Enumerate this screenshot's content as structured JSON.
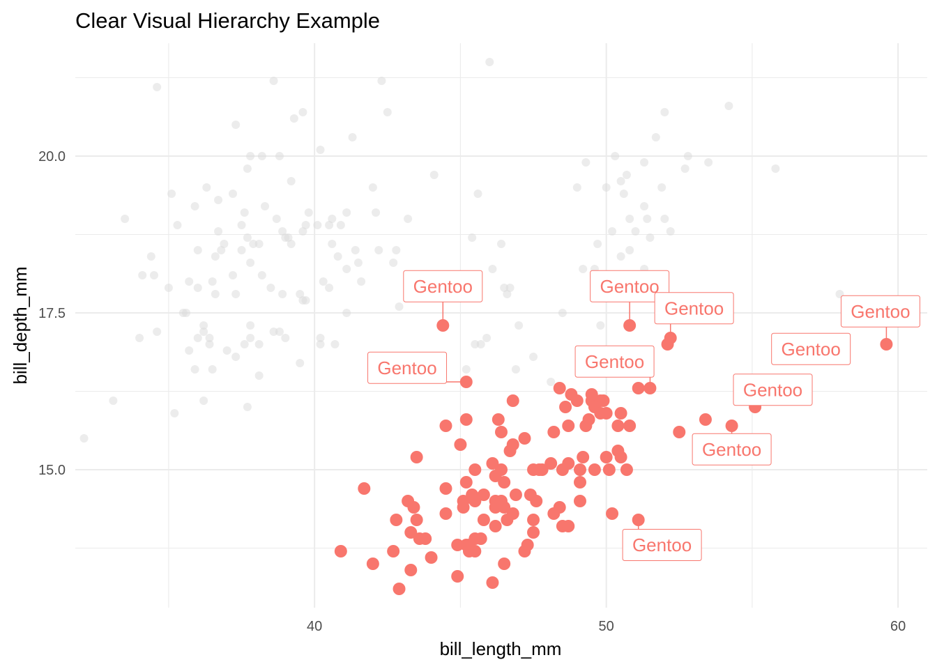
{
  "chart_data": {
    "type": "scatter",
    "title": "Clear Visual Hierarchy Example",
    "xlabel": "bill_length_mm",
    "ylabel": "bill_depth_mm",
    "xlim": [
      31.8,
      61.0
    ],
    "ylim": [
      12.8,
      21.8
    ],
    "x_ticks": [
      40,
      50,
      60
    ],
    "x_tick_labels": [
      "40",
      "50",
      "60"
    ],
    "x_minor_ticks": [
      35,
      45,
      55
    ],
    "y_ticks": [
      15.0,
      17.5,
      20.0
    ],
    "y_tick_labels": [
      "15.0",
      "17.5",
      "20.0"
    ],
    "y_minor_ticks": [
      13.75,
      16.25,
      18.75,
      21.25
    ],
    "grid": true,
    "legend": "none",
    "colors": {
      "highlight": "#F8766D",
      "muted": "#d9d9d9",
      "grid": "#ebebeb",
      "label_fill": "#ffffff"
    },
    "series": [
      {
        "role": "muted",
        "points": [
          [
            32.1,
            15.5
          ],
          [
            33.1,
            16.1
          ],
          [
            33.5,
            19.0
          ],
          [
            34.0,
            17.1
          ],
          [
            34.1,
            18.1
          ],
          [
            34.4,
            18.4
          ],
          [
            34.5,
            18.1
          ],
          [
            34.6,
            21.1
          ],
          [
            34.6,
            17.2
          ],
          [
            35.0,
            17.9
          ],
          [
            35.1,
            19.4
          ],
          [
            35.2,
            15.9
          ],
          [
            35.3,
            18.9
          ],
          [
            35.5,
            17.5
          ],
          [
            35.6,
            17.5
          ],
          [
            35.7,
            16.9
          ],
          [
            35.7,
            18.0
          ],
          [
            35.9,
            16.6
          ],
          [
            35.9,
            19.2
          ],
          [
            36.0,
            17.1
          ],
          [
            36.0,
            17.9
          ],
          [
            36.0,
            18.5
          ],
          [
            36.2,
            17.3
          ],
          [
            36.2,
            16.1
          ],
          [
            36.2,
            17.2
          ],
          [
            36.3,
            19.5
          ],
          [
            36.4,
            17.0
          ],
          [
            36.4,
            17.1
          ],
          [
            36.5,
            18.0
          ],
          [
            36.5,
            16.6
          ],
          [
            36.6,
            18.4
          ],
          [
            36.6,
            17.8
          ],
          [
            36.7,
            18.8
          ],
          [
            36.7,
            19.3
          ],
          [
            36.8,
            18.5
          ],
          [
            36.9,
            18.6
          ],
          [
            37.0,
            16.9
          ],
          [
            37.2,
            18.1
          ],
          [
            37.2,
            19.4
          ],
          [
            37.3,
            16.8
          ],
          [
            37.3,
            17.8
          ],
          [
            37.3,
            20.5
          ],
          [
            37.5,
            18.9
          ],
          [
            37.5,
            18.5
          ],
          [
            37.6,
            19.1
          ],
          [
            37.6,
            17.0
          ],
          [
            37.7,
            18.7
          ],
          [
            37.7,
            16.0
          ],
          [
            37.7,
            19.8
          ],
          [
            37.8,
            17.1
          ],
          [
            37.8,
            17.3
          ],
          [
            37.8,
            18.3
          ],
          [
            37.8,
            20.0
          ],
          [
            37.9,
            18.6
          ],
          [
            38.1,
            18.6
          ],
          [
            38.1,
            17.0
          ],
          [
            38.1,
            16.5
          ],
          [
            38.2,
            18.1
          ],
          [
            38.2,
            20.0
          ],
          [
            38.3,
            19.2
          ],
          [
            38.5,
            17.9
          ],
          [
            38.6,
            21.2
          ],
          [
            38.6,
            17.2
          ],
          [
            38.7,
            19.0
          ],
          [
            38.8,
            17.2
          ],
          [
            38.8,
            20.0
          ],
          [
            38.9,
            17.8
          ],
          [
            38.9,
            18.8
          ],
          [
            39.0,
            17.1
          ],
          [
            39.0,
            18.7
          ],
          [
            39.1,
            18.7
          ],
          [
            39.2,
            19.6
          ],
          [
            39.2,
            18.6
          ],
          [
            39.3,
            20.6
          ],
          [
            39.5,
            16.7
          ],
          [
            39.5,
            17.8
          ],
          [
            39.6,
            17.7
          ],
          [
            39.6,
            18.8
          ],
          [
            39.6,
            20.7
          ],
          [
            39.7,
            17.7
          ],
          [
            39.7,
            18.9
          ],
          [
            39.8,
            19.1
          ],
          [
            40.1,
            18.9
          ],
          [
            40.2,
            17.0
          ],
          [
            40.2,
            17.1
          ],
          [
            40.2,
            20.1
          ],
          [
            40.3,
            18.0
          ],
          [
            40.5,
            17.9
          ],
          [
            40.5,
            18.9
          ],
          [
            40.6,
            18.6
          ],
          [
            40.6,
            19.0
          ],
          [
            40.7,
            17.0
          ],
          [
            40.8,
            18.4
          ],
          [
            40.9,
            18.9
          ],
          [
            41.1,
            17.5
          ],
          [
            41.1,
            18.2
          ],
          [
            41.1,
            19.1
          ],
          [
            41.3,
            20.3
          ],
          [
            41.4,
            18.5
          ],
          [
            41.5,
            18.3
          ],
          [
            41.6,
            18.0
          ],
          [
            42.0,
            19.5
          ],
          [
            42.1,
            19.1
          ],
          [
            42.2,
            18.5
          ],
          [
            42.3,
            21.2
          ],
          [
            42.5,
            20.7
          ],
          [
            42.7,
            18.3
          ],
          [
            42.8,
            18.5
          ],
          [
            42.9,
            17.6
          ],
          [
            43.2,
            19.0
          ],
          [
            44.1,
            19.7
          ],
          [
            45.2,
            16.6
          ],
          [
            45.4,
            18.7
          ],
          [
            45.5,
            17.0
          ],
          [
            45.6,
            19.4
          ],
          [
            45.7,
            17.0
          ],
          [
            45.9,
            17.1
          ],
          [
            46.0,
            21.5
          ],
          [
            46.1,
            18.2
          ],
          [
            46.4,
            18.6
          ],
          [
            46.5,
            17.9
          ],
          [
            46.6,
            17.8
          ],
          [
            46.7,
            17.9
          ],
          [
            46.9,
            16.6
          ],
          [
            47.0,
            17.3
          ],
          [
            47.5,
            16.8
          ],
          [
            48.1,
            16.4
          ],
          [
            48.5,
            17.5
          ],
          [
            49.0,
            19.5
          ],
          [
            49.2,
            18.2
          ],
          [
            49.3,
            19.9
          ],
          [
            49.6,
            18.2
          ],
          [
            49.7,
            18.6
          ],
          [
            49.8,
            17.3
          ],
          [
            50.0,
            19.5
          ],
          [
            50.1,
            17.9
          ],
          [
            50.2,
            18.8
          ],
          [
            50.3,
            20.0
          ],
          [
            50.5,
            18.4
          ],
          [
            50.5,
            19.6
          ],
          [
            50.6,
            19.4
          ],
          [
            50.7,
            19.7
          ],
          [
            50.8,
            18.5
          ],
          [
            50.8,
            19.0
          ],
          [
            50.9,
            17.9
          ],
          [
            51.0,
            18.8
          ],
          [
            51.3,
            19.9
          ],
          [
            51.3,
            18.2
          ],
          [
            51.3,
            19.2
          ],
          [
            51.4,
            19.0
          ],
          [
            51.5,
            18.7
          ],
          [
            51.7,
            20.3
          ],
          [
            51.9,
            19.5
          ],
          [
            52.0,
            18.1
          ],
          [
            52.0,
            19.0
          ],
          [
            52.0,
            20.7
          ],
          [
            52.2,
            18.8
          ],
          [
            52.7,
            19.8
          ],
          [
            52.8,
            20.0
          ],
          [
            53.5,
            19.9
          ],
          [
            54.2,
            20.8
          ],
          [
            55.8,
            19.8
          ],
          [
            58.0,
            17.8
          ]
        ]
      },
      {
        "role": "highlight",
        "name": "Gentoo",
        "points": [
          [
            40.9,
            13.7
          ],
          [
            41.7,
            14.7
          ],
          [
            42.0,
            13.5
          ],
          [
            42.7,
            13.7
          ],
          [
            42.8,
            14.2
          ],
          [
            42.9,
            13.1
          ],
          [
            43.2,
            14.5
          ],
          [
            43.3,
            13.4
          ],
          [
            43.3,
            14.0
          ],
          [
            43.4,
            14.4
          ],
          [
            43.5,
            14.2
          ],
          [
            43.5,
            15.2
          ],
          [
            43.6,
            13.9
          ],
          [
            43.8,
            13.9
          ],
          [
            44.0,
            13.6
          ],
          [
            44.4,
            17.3
          ],
          [
            44.5,
            14.3
          ],
          [
            44.5,
            14.7
          ],
          [
            44.5,
            15.7
          ],
          [
            44.9,
            13.3
          ],
          [
            44.9,
            13.8
          ],
          [
            45.0,
            15.4
          ],
          [
            45.1,
            14.4
          ],
          [
            45.1,
            14.5
          ],
          [
            45.2,
            13.8
          ],
          [
            45.2,
            14.8
          ],
          [
            45.2,
            15.8
          ],
          [
            45.2,
            16.4
          ],
          [
            45.3,
            13.7
          ],
          [
            45.3,
            13.8
          ],
          [
            45.4,
            14.6
          ],
          [
            45.5,
            13.7
          ],
          [
            45.5,
            13.9
          ],
          [
            45.5,
            14.5
          ],
          [
            45.5,
            15.0
          ],
          [
            45.7,
            13.9
          ],
          [
            45.8,
            14.2
          ],
          [
            45.8,
            14.6
          ],
          [
            46.1,
            13.2
          ],
          [
            46.1,
            15.1
          ],
          [
            46.2,
            14.1
          ],
          [
            46.2,
            14.4
          ],
          [
            46.2,
            14.5
          ],
          [
            46.2,
            14.9
          ],
          [
            46.3,
            15.8
          ],
          [
            46.4,
            14.5
          ],
          [
            46.4,
            15.0
          ],
          [
            46.4,
            15.6
          ],
          [
            46.5,
            13.5
          ],
          [
            46.5,
            14.4
          ],
          [
            46.5,
            14.8
          ],
          [
            46.6,
            14.2
          ],
          [
            46.7,
            15.3
          ],
          [
            46.8,
            14.3
          ],
          [
            46.8,
            15.4
          ],
          [
            46.8,
            16.1
          ],
          [
            46.9,
            14.6
          ],
          [
            47.2,
            13.7
          ],
          [
            47.2,
            15.5
          ],
          [
            47.3,
            13.8
          ],
          [
            47.4,
            14.6
          ],
          [
            47.5,
            14.0
          ],
          [
            47.5,
            14.2
          ],
          [
            47.5,
            15.0
          ],
          [
            47.6,
            14.5
          ],
          [
            47.7,
            15.0
          ],
          [
            47.8,
            15.0
          ],
          [
            48.1,
            15.1
          ],
          [
            48.2,
            14.3
          ],
          [
            48.2,
            15.6
          ],
          [
            48.4,
            14.4
          ],
          [
            48.4,
            16.3
          ],
          [
            48.5,
            14.1
          ],
          [
            48.5,
            15.0
          ],
          [
            48.6,
            16.0
          ],
          [
            48.7,
            14.1
          ],
          [
            48.7,
            15.1
          ],
          [
            48.7,
            15.7
          ],
          [
            48.8,
            16.2
          ],
          [
            49.0,
            16.1
          ],
          [
            49.1,
            14.5
          ],
          [
            49.1,
            14.8
          ],
          [
            49.1,
            15.0
          ],
          [
            49.2,
            15.2
          ],
          [
            49.3,
            15.7
          ],
          [
            49.4,
            15.8
          ],
          [
            49.5,
            16.1
          ],
          [
            49.5,
            16.2
          ],
          [
            49.6,
            15.0
          ],
          [
            49.6,
            16.0
          ],
          [
            49.8,
            15.9
          ],
          [
            49.8,
            16.1
          ],
          [
            49.9,
            16.1
          ],
          [
            50.0,
            15.2
          ],
          [
            50.0,
            15.9
          ],
          [
            50.1,
            15.0
          ],
          [
            50.2,
            14.3
          ],
          [
            50.4,
            15.3
          ],
          [
            50.4,
            15.7
          ],
          [
            50.5,
            15.2
          ],
          [
            50.5,
            15.9
          ],
          [
            50.7,
            15.0
          ],
          [
            50.8,
            15.7
          ],
          [
            50.8,
            17.3
          ],
          [
            51.1,
            14.2
          ],
          [
            51.1,
            16.3
          ],
          [
            51.5,
            16.3
          ],
          [
            52.1,
            17.0
          ],
          [
            52.2,
            17.1
          ],
          [
            52.5,
            15.6
          ],
          [
            53.4,
            15.8
          ],
          [
            54.3,
            15.7
          ],
          [
            55.1,
            16.0
          ],
          [
            55.9,
            17.0
          ],
          [
            59.6,
            17.0
          ]
        ]
      }
    ],
    "annotations": [
      {
        "text": "Gentoo",
        "point": [
          44.4,
          17.3
        ]
      },
      {
        "text": "Gentoo",
        "point": [
          45.2,
          16.4
        ]
      },
      {
        "text": "Gentoo",
        "point": [
          50.8,
          17.3
        ]
      },
      {
        "text": "Gentoo",
        "point": [
          52.2,
          17.1
        ]
      },
      {
        "text": "Gentoo",
        "point": [
          51.5,
          16.3
        ]
      },
      {
        "text": "Gentoo",
        "point": [
          59.6,
          17.0
        ]
      },
      {
        "text": "Gentoo",
        "point": [
          55.9,
          17.0
        ]
      },
      {
        "text": "Gentoo",
        "point": [
          55.1,
          16.0
        ]
      },
      {
        "text": "Gentoo",
        "point": [
          54.3,
          15.7
        ]
      },
      {
        "text": "Gentoo",
        "point": [
          51.1,
          14.2
        ]
      }
    ]
  }
}
